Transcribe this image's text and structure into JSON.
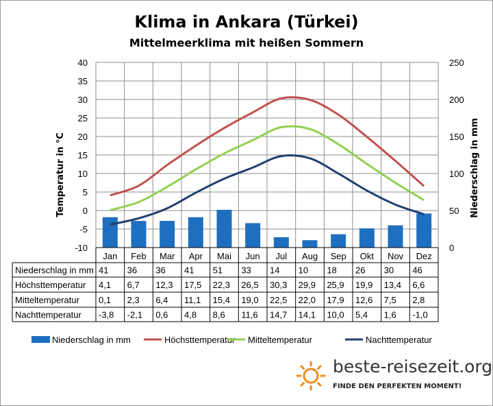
{
  "title": "Klima in Ankara (Türkei)",
  "subtitle": "Mittelmeerklima mit heißen Sommern",
  "logo": {
    "name": "beste-reisezeit.org",
    "tagline": "FINDE DEN PERFEKTEN MOMENT!",
    "icon": "sun-icon"
  },
  "colors": {
    "precip": "#1f6fc0",
    "high": "#c0504d",
    "mean": "#92d050",
    "low": "#1f3f6e"
  },
  "chart_data": {
    "type": "bar+line",
    "categories": [
      "Jan",
      "Feb",
      "Mar",
      "Apr",
      "Mai",
      "Jun",
      "Jul",
      "Aug",
      "Sep",
      "Okt",
      "Nov",
      "Dez"
    ],
    "ylabel": "Temperatur in °C",
    "y2label": "Niederschlag in mm",
    "ylim": [
      -10,
      40
    ],
    "y2lim": [
      0,
      250
    ],
    "yticks": [
      "40",
      "35",
      "30",
      "25",
      "20",
      "15",
      "10",
      "5",
      "0",
      "-5",
      "-10"
    ],
    "y2ticks": [
      "250",
      "200",
      "150",
      "100",
      "50",
      "0"
    ],
    "grid": true,
    "legend_position": "bottom",
    "series": [
      {
        "name": "Niederschlag in mm",
        "type": "bar",
        "axis": "right",
        "values": [
          41,
          36,
          36,
          41,
          51,
          33,
          14,
          10,
          18,
          26,
          30,
          46
        ],
        "labels": [
          "41",
          "36",
          "36",
          "41",
          "51",
          "33",
          "14",
          "10",
          "18",
          "26",
          "30",
          "46"
        ]
      },
      {
        "name": "Höchsttemperatur",
        "type": "line",
        "axis": "left",
        "values": [
          4.1,
          6.7,
          12.3,
          17.5,
          22.3,
          26.5,
          30.3,
          29.9,
          25.9,
          19.9,
          13.4,
          6.6
        ],
        "labels": [
          "4,1",
          "6,7",
          "12,3",
          "17,5",
          "22,3",
          "26,5",
          "30,3",
          "29,9",
          "25,9",
          "19,9",
          "13,4",
          "6,6"
        ]
      },
      {
        "name": "Mitteltemperatur",
        "type": "line",
        "axis": "left",
        "values": [
          0.1,
          2.3,
          6.4,
          11.1,
          15.4,
          19.0,
          22.5,
          22.0,
          17.9,
          12.6,
          7.5,
          2.8
        ],
        "labels": [
          "0,1",
          "2,3",
          "6,4",
          "11,1",
          "15,4",
          "19,0",
          "22,5",
          "22,0",
          "17,9",
          "12,6",
          "7,5",
          "2,8"
        ]
      },
      {
        "name": "Nachttemperatur",
        "type": "line",
        "axis": "left",
        "values": [
          -3.8,
          -2.1,
          0.6,
          4.8,
          8.6,
          11.6,
          14.7,
          14.1,
          10.0,
          5.4,
          1.6,
          -1.0
        ],
        "labels": [
          "-3,8",
          "-2,1",
          "0,6",
          "4,8",
          "8,6",
          "11,6",
          "14,7",
          "14,1",
          "10,0",
          "5,4",
          "1,6",
          "-1,0"
        ]
      }
    ]
  }
}
